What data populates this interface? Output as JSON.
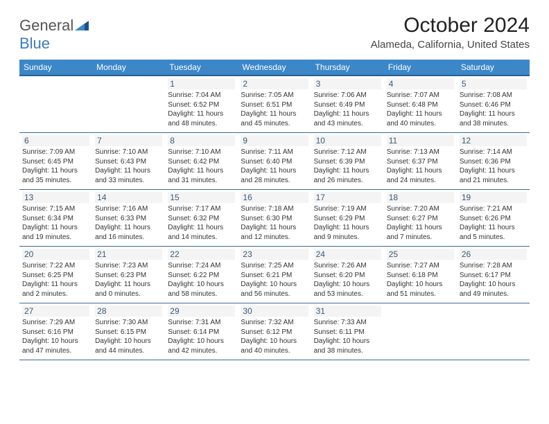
{
  "logo": {
    "line1": "General",
    "line2": "Blue"
  },
  "title": "October 2024",
  "location": "Alameda, California, United States",
  "colors": {
    "header_bg": "#3b87c8",
    "header_border": "#2a5f8a",
    "row_border": "#3b6a95",
    "daynum_bg": "#f4f4f4",
    "daynum_color": "#3a5a7a",
    "text": "#333333",
    "logo_gray": "#555555",
    "logo_blue": "#3b7bbf"
  },
  "day_names": [
    "Sunday",
    "Monday",
    "Tuesday",
    "Wednesday",
    "Thursday",
    "Friday",
    "Saturday"
  ],
  "cells": [
    {
      "num": "",
      "sunrise": "",
      "sunset": "",
      "daylight": ""
    },
    {
      "num": "",
      "sunrise": "",
      "sunset": "",
      "daylight": ""
    },
    {
      "num": "1",
      "sunrise": "Sunrise: 7:04 AM",
      "sunset": "Sunset: 6:52 PM",
      "daylight": "Daylight: 11 hours and 48 minutes."
    },
    {
      "num": "2",
      "sunrise": "Sunrise: 7:05 AM",
      "sunset": "Sunset: 6:51 PM",
      "daylight": "Daylight: 11 hours and 45 minutes."
    },
    {
      "num": "3",
      "sunrise": "Sunrise: 7:06 AM",
      "sunset": "Sunset: 6:49 PM",
      "daylight": "Daylight: 11 hours and 43 minutes."
    },
    {
      "num": "4",
      "sunrise": "Sunrise: 7:07 AM",
      "sunset": "Sunset: 6:48 PM",
      "daylight": "Daylight: 11 hours and 40 minutes."
    },
    {
      "num": "5",
      "sunrise": "Sunrise: 7:08 AM",
      "sunset": "Sunset: 6:46 PM",
      "daylight": "Daylight: 11 hours and 38 minutes."
    },
    {
      "num": "6",
      "sunrise": "Sunrise: 7:09 AM",
      "sunset": "Sunset: 6:45 PM",
      "daylight": "Daylight: 11 hours and 35 minutes."
    },
    {
      "num": "7",
      "sunrise": "Sunrise: 7:10 AM",
      "sunset": "Sunset: 6:43 PM",
      "daylight": "Daylight: 11 hours and 33 minutes."
    },
    {
      "num": "8",
      "sunrise": "Sunrise: 7:10 AM",
      "sunset": "Sunset: 6:42 PM",
      "daylight": "Daylight: 11 hours and 31 minutes."
    },
    {
      "num": "9",
      "sunrise": "Sunrise: 7:11 AM",
      "sunset": "Sunset: 6:40 PM",
      "daylight": "Daylight: 11 hours and 28 minutes."
    },
    {
      "num": "10",
      "sunrise": "Sunrise: 7:12 AM",
      "sunset": "Sunset: 6:39 PM",
      "daylight": "Daylight: 11 hours and 26 minutes."
    },
    {
      "num": "11",
      "sunrise": "Sunrise: 7:13 AM",
      "sunset": "Sunset: 6:37 PM",
      "daylight": "Daylight: 11 hours and 24 minutes."
    },
    {
      "num": "12",
      "sunrise": "Sunrise: 7:14 AM",
      "sunset": "Sunset: 6:36 PM",
      "daylight": "Daylight: 11 hours and 21 minutes."
    },
    {
      "num": "13",
      "sunrise": "Sunrise: 7:15 AM",
      "sunset": "Sunset: 6:34 PM",
      "daylight": "Daylight: 11 hours and 19 minutes."
    },
    {
      "num": "14",
      "sunrise": "Sunrise: 7:16 AM",
      "sunset": "Sunset: 6:33 PM",
      "daylight": "Daylight: 11 hours and 16 minutes."
    },
    {
      "num": "15",
      "sunrise": "Sunrise: 7:17 AM",
      "sunset": "Sunset: 6:32 PM",
      "daylight": "Daylight: 11 hours and 14 minutes."
    },
    {
      "num": "16",
      "sunrise": "Sunrise: 7:18 AM",
      "sunset": "Sunset: 6:30 PM",
      "daylight": "Daylight: 11 hours and 12 minutes."
    },
    {
      "num": "17",
      "sunrise": "Sunrise: 7:19 AM",
      "sunset": "Sunset: 6:29 PM",
      "daylight": "Daylight: 11 hours and 9 minutes."
    },
    {
      "num": "18",
      "sunrise": "Sunrise: 7:20 AM",
      "sunset": "Sunset: 6:27 PM",
      "daylight": "Daylight: 11 hours and 7 minutes."
    },
    {
      "num": "19",
      "sunrise": "Sunrise: 7:21 AM",
      "sunset": "Sunset: 6:26 PM",
      "daylight": "Daylight: 11 hours and 5 minutes."
    },
    {
      "num": "20",
      "sunrise": "Sunrise: 7:22 AM",
      "sunset": "Sunset: 6:25 PM",
      "daylight": "Daylight: 11 hours and 2 minutes."
    },
    {
      "num": "21",
      "sunrise": "Sunrise: 7:23 AM",
      "sunset": "Sunset: 6:23 PM",
      "daylight": "Daylight: 11 hours and 0 minutes."
    },
    {
      "num": "22",
      "sunrise": "Sunrise: 7:24 AM",
      "sunset": "Sunset: 6:22 PM",
      "daylight": "Daylight: 10 hours and 58 minutes."
    },
    {
      "num": "23",
      "sunrise": "Sunrise: 7:25 AM",
      "sunset": "Sunset: 6:21 PM",
      "daylight": "Daylight: 10 hours and 56 minutes."
    },
    {
      "num": "24",
      "sunrise": "Sunrise: 7:26 AM",
      "sunset": "Sunset: 6:20 PM",
      "daylight": "Daylight: 10 hours and 53 minutes."
    },
    {
      "num": "25",
      "sunrise": "Sunrise: 7:27 AM",
      "sunset": "Sunset: 6:18 PM",
      "daylight": "Daylight: 10 hours and 51 minutes."
    },
    {
      "num": "26",
      "sunrise": "Sunrise: 7:28 AM",
      "sunset": "Sunset: 6:17 PM",
      "daylight": "Daylight: 10 hours and 49 minutes."
    },
    {
      "num": "27",
      "sunrise": "Sunrise: 7:29 AM",
      "sunset": "Sunset: 6:16 PM",
      "daylight": "Daylight: 10 hours and 47 minutes."
    },
    {
      "num": "28",
      "sunrise": "Sunrise: 7:30 AM",
      "sunset": "Sunset: 6:15 PM",
      "daylight": "Daylight: 10 hours and 44 minutes."
    },
    {
      "num": "29",
      "sunrise": "Sunrise: 7:31 AM",
      "sunset": "Sunset: 6:14 PM",
      "daylight": "Daylight: 10 hours and 42 minutes."
    },
    {
      "num": "30",
      "sunrise": "Sunrise: 7:32 AM",
      "sunset": "Sunset: 6:12 PM",
      "daylight": "Daylight: 10 hours and 40 minutes."
    },
    {
      "num": "31",
      "sunrise": "Sunrise: 7:33 AM",
      "sunset": "Sunset: 6:11 PM",
      "daylight": "Daylight: 10 hours and 38 minutes."
    },
    {
      "num": "",
      "sunrise": "",
      "sunset": "",
      "daylight": ""
    },
    {
      "num": "",
      "sunrise": "",
      "sunset": "",
      "daylight": ""
    }
  ]
}
